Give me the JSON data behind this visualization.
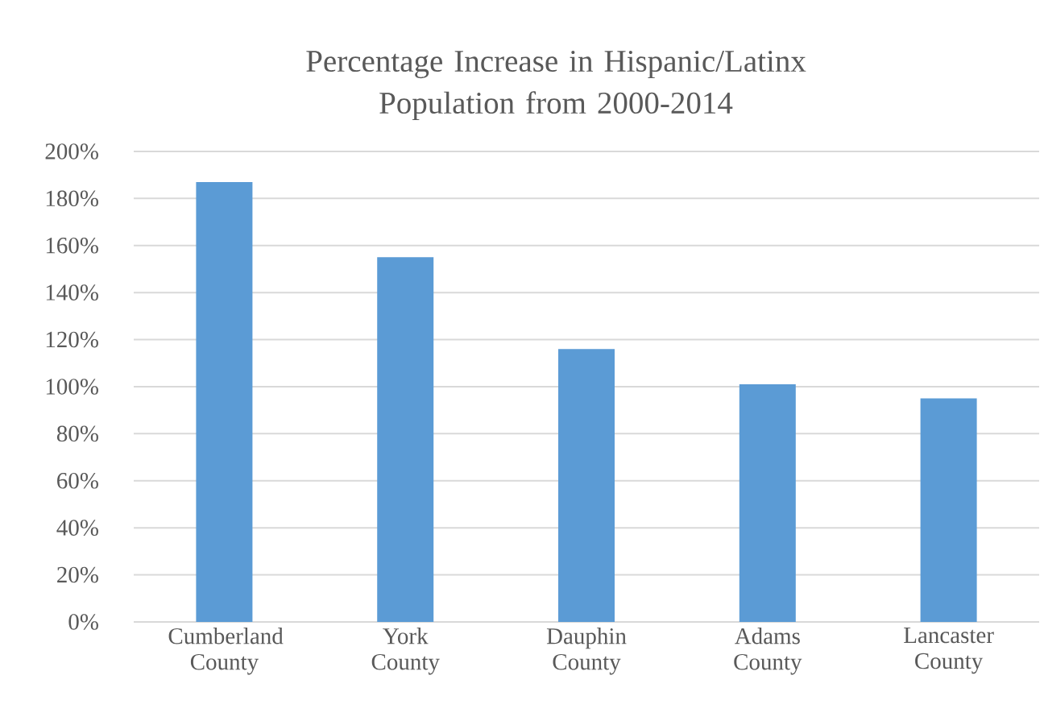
{
  "chart_data": {
    "type": "bar",
    "title": "Percentage Increase in Hispanic/Latinx Population from 2000-2014",
    "categories": [
      "Cumberland County",
      "York County",
      "Dauphin County",
      "Adams County",
      "Lancaster County"
    ],
    "values": [
      187,
      155,
      116,
      101,
      95
    ],
    "color": "#5b9bd5",
    "ylim": [
      0,
      200
    ],
    "yticks": [
      {
        "value": 0,
        "label": "0%"
      },
      {
        "value": 20,
        "label": "20%"
      },
      {
        "value": 40,
        "label": "40%"
      },
      {
        "value": 60,
        "label": "60%"
      },
      {
        "value": 80,
        "label": "80%"
      },
      {
        "value": 100,
        "label": "100%"
      },
      {
        "value": 120,
        "label": "120%"
      },
      {
        "value": 140,
        "label": "140%"
      },
      {
        "value": 160,
        "label": "160%"
      },
      {
        "value": 180,
        "label": "180%"
      },
      {
        "value": 200,
        "label": "200%"
      }
    ],
    "grid": "y"
  }
}
